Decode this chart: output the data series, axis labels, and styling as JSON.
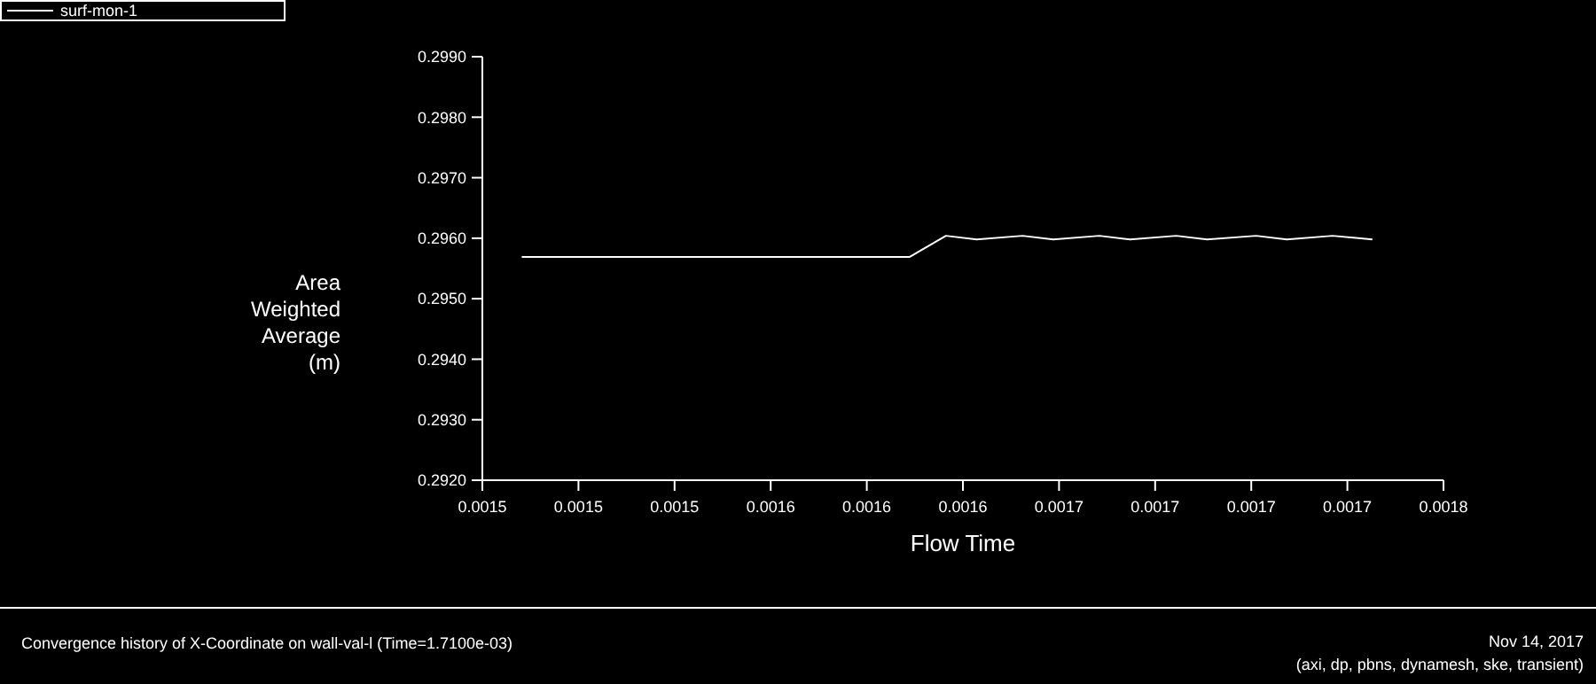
{
  "chart_data": {
    "type": "line",
    "xlabel": "Flow Time",
    "ylabel": "Area Weighted Average (m)",
    "xlim": [
      0.00147,
      0.00177
    ],
    "xticks": [
      {
        "value": 0.00147,
        "label": "0.0015"
      },
      {
        "value": 0.0015,
        "label": "0.0015"
      },
      {
        "value": 0.00153,
        "label": "0.0015"
      },
      {
        "value": 0.00156,
        "label": "0.0016"
      },
      {
        "value": 0.00159,
        "label": "0.0016"
      },
      {
        "value": 0.00162,
        "label": "0.0016"
      },
      {
        "value": 0.00165,
        "label": "0.0017"
      },
      {
        "value": 0.00168,
        "label": "0.0017"
      },
      {
        "value": 0.00171,
        "label": "0.0017"
      },
      {
        "value": 0.00174,
        "label": "0.0017"
      },
      {
        "value": 0.00177,
        "label": "0.0018"
      }
    ],
    "ylim": [
      0.292,
      0.299
    ],
    "yticks": [
      {
        "value": 0.292,
        "label": "0.2920"
      },
      {
        "value": 0.293,
        "label": "0.2930"
      },
      {
        "value": 0.294,
        "label": "0.2940"
      },
      {
        "value": 0.295,
        "label": "0.2950"
      },
      {
        "value": 0.296,
        "label": "0.2960"
      },
      {
        "value": 0.297,
        "label": "0.2970"
      },
      {
        "value": 0.298,
        "label": "0.2980"
      },
      {
        "value": 0.299,
        "label": "0.2990"
      }
    ],
    "series": [
      {
        "name": "surf-mon-1",
        "color": "#ffffff",
        "x": [
          0.0014823,
          0.0016033,
          0.0016147,
          0.0016243,
          0.0016386,
          0.0016482,
          0.0016626,
          0.0016722,
          0.0016866,
          0.0016962,
          0.0017115,
          0.0017211,
          0.0017354,
          0.0017478
        ],
        "values": [
          0.29569,
          0.29569,
          0.29604,
          0.29598,
          0.29604,
          0.29598,
          0.29604,
          0.29598,
          0.29604,
          0.29598,
          0.29604,
          0.29598,
          0.29604,
          0.29598
        ]
      }
    ],
    "grid": false,
    "legend": "top left",
    "marker": "none",
    "line_style": "solid",
    "annotations": [
      "Convergence history of X-Coordinate on wall-val-l  (Time=1.7100e-03)",
      "Nov 14, 2017",
      "(axi, dp, pbns, dynamesh, ske, transient)"
    ]
  }
}
